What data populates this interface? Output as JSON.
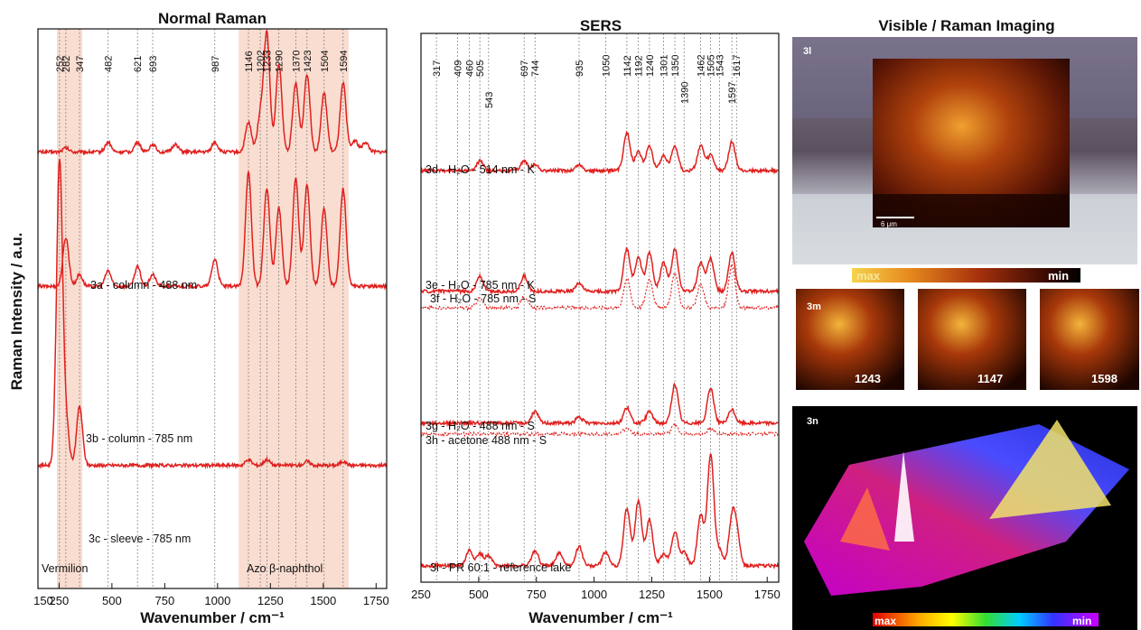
{
  "panels": {
    "left_title": "Normal Raman",
    "mid_title": "SERS",
    "right_title": "Visible / Raman Imaging"
  },
  "chart_data": [
    {
      "type": "line",
      "title": "Normal Raman",
      "xlabel": "Wavenumber / cm⁻¹",
      "ylabel": "Raman Intensity / a.u.",
      "xlim": [
        150,
        1800
      ],
      "xticks": [
        "250",
        "500",
        "750",
        "1000",
        "1250",
        "1500",
        "1750"
      ],
      "extra_ticks": [
        "150"
      ],
      "xtick_values": [
        250,
        500,
        750,
        1000,
        1250,
        1500,
        1750
      ],
      "peaks": [
        "252",
        "282",
        "347",
        "482",
        "621",
        "693",
        "987",
        "1146",
        "1202",
        "1233",
        "1290",
        "1370",
        "1423",
        "1504",
        "1594"
      ],
      "peak_values": [
        252,
        282,
        347,
        482,
        621,
        693,
        987,
        1146,
        1202,
        1233,
        1290,
        1370,
        1423,
        1504,
        1594
      ],
      "region_labels": [
        "Vermilion",
        "Azo β-naphthol"
      ],
      "series": [
        {
          "name": "3a - column - 488 nm",
          "baseline": 0.78,
          "peaks": [
            [
              282,
              0.02
            ],
            [
              482,
              0.05
            ],
            [
              621,
              0.05
            ],
            [
              693,
              0.04
            ],
            [
              800,
              0.04
            ],
            [
              987,
              0.05
            ],
            [
              1146,
              0.15
            ],
            [
              1202,
              0.18
            ],
            [
              1233,
              0.6
            ],
            [
              1290,
              0.45
            ],
            [
              1370,
              0.35
            ],
            [
              1423,
              0.4
            ],
            [
              1504,
              0.3
            ],
            [
              1594,
              0.35
            ],
            [
              1650,
              0.06
            ],
            [
              1700,
              0.05
            ]
          ]
        },
        {
          "name": "3b - column - 785 nm",
          "baseline": 0.54,
          "peaks": [
            [
              282,
              0.25
            ],
            [
              347,
              0.06
            ],
            [
              482,
              0.08
            ],
            [
              621,
              0.1
            ],
            [
              693,
              0.06
            ],
            [
              987,
              0.14
            ],
            [
              1146,
              0.58
            ],
            [
              1233,
              0.5
            ],
            [
              1290,
              0.4
            ],
            [
              1370,
              0.55
            ],
            [
              1423,
              0.52
            ],
            [
              1504,
              0.4
            ],
            [
              1594,
              0.5
            ]
          ]
        },
        {
          "name": "3c - sleeve - 785 nm",
          "baseline": 0.22,
          "peaks": [
            [
              252,
              1.55
            ],
            [
              282,
              0.22
            ],
            [
              347,
              0.3
            ],
            [
              1146,
              0.03
            ],
            [
              1233,
              0.03
            ],
            [
              1423,
              0.02
            ],
            [
              1594,
              0.02
            ]
          ]
        }
      ]
    },
    {
      "type": "line",
      "title": "SERS",
      "xlabel": "Wavenumber / cm⁻¹",
      "xlim": [
        250,
        1800
      ],
      "xticks": [
        "250",
        "500",
        "750",
        "1000",
        "1250",
        "1500",
        "1750"
      ],
      "xtick_values": [
        250,
        500,
        750,
        1000,
        1250,
        1500,
        1750
      ],
      "peaks": [
        "317",
        "409",
        "460",
        "505",
        "543",
        "697",
        "744",
        "935",
        "1050",
        "1142",
        "1192",
        "1240",
        "1301",
        "1350",
        "1390",
        "1462",
        "1505",
        "1543",
        "1597",
        "1617"
      ],
      "peak_values": [
        317,
        409,
        460,
        505,
        543,
        697,
        744,
        935,
        1050,
        1142,
        1192,
        1240,
        1301,
        1350,
        1390,
        1462,
        1505,
        1543,
        1597,
        1617
      ],
      "series": [
        {
          "name": "3d - H₂O - 514 nm - K",
          "baseline": 0.75,
          "peaks": [
            [
              505,
              0.05
            ],
            [
              697,
              0.05
            ],
            [
              744,
              0.03
            ],
            [
              935,
              0.03
            ],
            [
              1142,
              0.2
            ],
            [
              1192,
              0.1
            ],
            [
              1240,
              0.13
            ],
            [
              1301,
              0.08
            ],
            [
              1350,
              0.13
            ],
            [
              1462,
              0.13
            ],
            [
              1505,
              0.08
            ],
            [
              1597,
              0.15
            ]
          ]
        },
        {
          "name": "3e - H₂O - 785 nm - K",
          "baseline": 0.53,
          "peaks": [
            [
              505,
              0.08
            ],
            [
              697,
              0.08
            ],
            [
              935,
              0.04
            ],
            [
              1142,
              0.22
            ],
            [
              1192,
              0.18
            ],
            [
              1240,
              0.2
            ],
            [
              1301,
              0.15
            ],
            [
              1350,
              0.22
            ],
            [
              1462,
              0.15
            ],
            [
              1505,
              0.17
            ],
            [
              1597,
              0.2
            ]
          ]
        },
        {
          "name": "3f - H₂O - 785 nm - S",
          "baseline": 0.5,
          "dashed": true,
          "peaks": [
            [
              505,
              0.05
            ],
            [
              697,
              0.06
            ],
            [
              1142,
              0.15
            ],
            [
              1240,
              0.15
            ],
            [
              1350,
              0.18
            ],
            [
              1462,
              0.12
            ],
            [
              1597,
              0.22
            ]
          ]
        },
        {
          "name": "3g - H₂O - 488 nm - S",
          "baseline": 0.29,
          "peaks": [
            [
              744,
              0.06
            ],
            [
              935,
              0.03
            ],
            [
              1142,
              0.08
            ],
            [
              1240,
              0.06
            ],
            [
              1350,
              0.2
            ],
            [
              1505,
              0.18
            ],
            [
              1597,
              0.07
            ]
          ]
        },
        {
          "name": "3h - acetone  488 nm - S",
          "baseline": 0.27,
          "dashed": true,
          "peaks": [
            [
              1142,
              0.03
            ],
            [
              1350,
              0.05
            ],
            [
              1505,
              0.03
            ]
          ]
        },
        {
          "name": "3i - PR 60:1 - reference lake",
          "baseline": 0.03,
          "peaks": [
            [
              460,
              0.08
            ],
            [
              505,
              0.06
            ],
            [
              543,
              0.05
            ],
            [
              744,
              0.08
            ],
            [
              850,
              0.07
            ],
            [
              935,
              0.1
            ],
            [
              1050,
              0.07
            ],
            [
              1142,
              0.3
            ],
            [
              1192,
              0.34
            ],
            [
              1240,
              0.24
            ],
            [
              1301,
              0.06
            ],
            [
              1350,
              0.18
            ],
            [
              1390,
              0.07
            ],
            [
              1462,
              0.26
            ],
            [
              1505,
              0.58
            ],
            [
              1543,
              0.08
            ],
            [
              1597,
              0.22
            ],
            [
              1617,
              0.16
            ]
          ]
        }
      ]
    }
  ],
  "imaging": {
    "panel_3l": "3l",
    "scale_bar": "6 μm",
    "colorbar_max": "max",
    "colorbar_min": "min",
    "panel_3m": "3m",
    "maps": [
      "1243",
      "1147",
      "1598"
    ],
    "panel_3n": "3n",
    "colorbar2_max": "max",
    "colorbar2_min": "min"
  },
  "colors": {
    "trace": "#e0201e",
    "region_fill": "#f9ddd0",
    "grid": "#777777"
  }
}
